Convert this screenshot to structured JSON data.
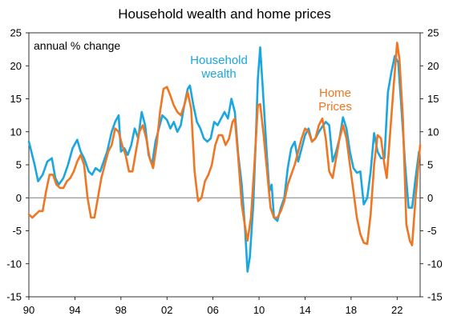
{
  "chart_data": {
    "type": "line",
    "title": "Household wealth and home prices",
    "subtitle": "annual % change",
    "xlabel": "",
    "ylabel": "",
    "x_range": [
      1990,
      2024
    ],
    "ylim": [
      -15,
      25
    ],
    "y_ticks": [
      25,
      20,
      15,
      10,
      5,
      0,
      -5,
      -10,
      -15
    ],
    "x_ticks": [
      {
        "value": 1990,
        "label": "90"
      },
      {
        "value": 1994,
        "label": "94"
      },
      {
        "value": 1998,
        "label": "98"
      },
      {
        "value": 2002,
        "label": "02"
      },
      {
        "value": 2006,
        "label": "06"
      },
      {
        "value": 2010,
        "label": "10"
      },
      {
        "value": 2014,
        "label": "14"
      },
      {
        "value": 2018,
        "label": "18"
      },
      {
        "value": 2022,
        "label": "22"
      }
    ],
    "grid": false,
    "zero_line": true,
    "series": [
      {
        "name": "Household wealth",
        "label_lines": [
          "Household",
          "wealth"
        ],
        "color": "#1aa6e0",
        "points": [
          [
            1990.0,
            8.5
          ],
          [
            1990.5,
            5.0
          ],
          [
            1990.8,
            2.5
          ],
          [
            1991.2,
            3.5
          ],
          [
            1991.6,
            5.5
          ],
          [
            1992.0,
            6.0
          ],
          [
            1992.3,
            3.0
          ],
          [
            1992.6,
            2.0
          ],
          [
            1993.0,
            3.0
          ],
          [
            1993.4,
            5.0
          ],
          [
            1993.8,
            7.5
          ],
          [
            1994.2,
            8.8
          ],
          [
            1994.5,
            7.0
          ],
          [
            1994.8,
            6.0
          ],
          [
            1995.2,
            4.0
          ],
          [
            1995.5,
            3.5
          ],
          [
            1995.8,
            4.5
          ],
          [
            1996.2,
            4.0
          ],
          [
            1996.5,
            5.5
          ],
          [
            1996.8,
            7.0
          ],
          [
            1997.2,
            10.0
          ],
          [
            1997.5,
            11.5
          ],
          [
            1997.8,
            12.5
          ],
          [
            1998.0,
            7.0
          ],
          [
            1998.3,
            7.5
          ],
          [
            1998.6,
            6.5
          ],
          [
            1998.9,
            8.0
          ],
          [
            1999.2,
            10.5
          ],
          [
            1999.5,
            9.0
          ],
          [
            1999.8,
            13.0
          ],
          [
            2000.1,
            11.0
          ],
          [
            2000.4,
            6.5
          ],
          [
            2000.7,
            5.0
          ],
          [
            2001.0,
            8.5
          ],
          [
            2001.3,
            10.5
          ],
          [
            2001.6,
            12.5
          ],
          [
            2002.0,
            11.8
          ],
          [
            2002.3,
            10.5
          ],
          [
            2002.6,
            11.5
          ],
          [
            2002.9,
            10.0
          ],
          [
            2003.2,
            11.0
          ],
          [
            2003.5,
            14.0
          ],
          [
            2003.8,
            16.5
          ],
          [
            2004.0,
            17.0
          ],
          [
            2004.3,
            14.0
          ],
          [
            2004.6,
            11.5
          ],
          [
            2004.9,
            10.5
          ],
          [
            2005.2,
            9.0
          ],
          [
            2005.5,
            8.5
          ],
          [
            2005.8,
            9.0
          ],
          [
            2006.1,
            11.5
          ],
          [
            2006.4,
            11.0
          ],
          [
            2006.7,
            12.0
          ],
          [
            2007.0,
            13.0
          ],
          [
            2007.3,
            12.0
          ],
          [
            2007.6,
            15.0
          ],
          [
            2007.9,
            13.0
          ],
          [
            2008.2,
            6.5
          ],
          [
            2008.5,
            2.0
          ],
          [
            2008.8,
            -5.0
          ],
          [
            2009.0,
            -11.2
          ],
          [
            2009.2,
            -9.0
          ],
          [
            2009.5,
            -1.0
          ],
          [
            2009.7,
            8.0
          ],
          [
            2009.9,
            18.0
          ],
          [
            2010.1,
            22.8
          ],
          [
            2010.4,
            14.5
          ],
          [
            2010.7,
            6.0
          ],
          [
            2010.9,
            1.0
          ],
          [
            2011.1,
            2.0
          ],
          [
            2011.3,
            -3.0
          ],
          [
            2011.6,
            -3.5
          ],
          [
            2011.9,
            -1.5
          ],
          [
            2012.2,
            0.0
          ],
          [
            2012.5,
            4.5
          ],
          [
            2012.8,
            7.5
          ],
          [
            2013.1,
            8.5
          ],
          [
            2013.4,
            5.5
          ],
          [
            2013.7,
            7.5
          ],
          [
            2014.0,
            9.5
          ],
          [
            2014.3,
            10.5
          ],
          [
            2014.6,
            8.5
          ],
          [
            2014.9,
            9.0
          ],
          [
            2015.2,
            10.0
          ],
          [
            2015.5,
            10.8
          ],
          [
            2015.8,
            11.5
          ],
          [
            2016.1,
            11.0
          ],
          [
            2016.4,
            5.5
          ],
          [
            2016.7,
            7.0
          ],
          [
            2017.0,
            9.0
          ],
          [
            2017.3,
            12.2
          ],
          [
            2017.6,
            10.5
          ],
          [
            2017.9,
            7.0
          ],
          [
            2018.2,
            4.5
          ],
          [
            2018.5,
            3.8
          ],
          [
            2018.8,
            4.0
          ],
          [
            2019.1,
            -1.0
          ],
          [
            2019.4,
            0.0
          ],
          [
            2019.7,
            4.0
          ],
          [
            2020.0,
            9.8
          ],
          [
            2020.3,
            7.0
          ],
          [
            2020.6,
            6.0
          ],
          [
            2020.9,
            6.0
          ],
          [
            2021.2,
            16.0
          ],
          [
            2021.5,
            19.0
          ],
          [
            2021.8,
            21.5
          ],
          [
            2022.1,
            20.5
          ],
          [
            2022.4,
            13.0
          ],
          [
            2022.7,
            5.0
          ],
          [
            2023.0,
            -1.5
          ],
          [
            2023.3,
            -1.5
          ],
          [
            2023.6,
            3.0
          ],
          [
            2023.9,
            7.0
          ]
        ]
      },
      {
        "name": "Home Prices",
        "label_lines": [
          "Home",
          "Prices"
        ],
        "color": "#ef7622",
        "points": [
          [
            1990.0,
            -2.5
          ],
          [
            1990.3,
            -3.0
          ],
          [
            1990.6,
            -2.5
          ],
          [
            1990.9,
            -2.0
          ],
          [
            1991.2,
            -2.0
          ],
          [
            1991.5,
            1.0
          ],
          [
            1991.8,
            3.5
          ],
          [
            1992.1,
            3.5
          ],
          [
            1992.4,
            2.0
          ],
          [
            1992.7,
            1.5
          ],
          [
            1993.0,
            1.5
          ],
          [
            1993.3,
            2.5
          ],
          [
            1993.6,
            3.0
          ],
          [
            1993.9,
            4.0
          ],
          [
            1994.2,
            5.5
          ],
          [
            1994.5,
            6.5
          ],
          [
            1994.8,
            5.0
          ],
          [
            1995.1,
            0.0
          ],
          [
            1995.4,
            -3.0
          ],
          [
            1995.7,
            -3.0
          ],
          [
            1996.0,
            0.0
          ],
          [
            1996.3,
            3.0
          ],
          [
            1996.6,
            5.0
          ],
          [
            1996.9,
            7.0
          ],
          [
            1997.2,
            8.0
          ],
          [
            1997.5,
            10.5
          ],
          [
            1997.8,
            10.0
          ],
          [
            1998.1,
            8.0
          ],
          [
            1998.4,
            6.5
          ],
          [
            1998.7,
            4.0
          ],
          [
            1999.0,
            4.0
          ],
          [
            1999.3,
            7.0
          ],
          [
            1999.6,
            10.0
          ],
          [
            1999.9,
            11.0
          ],
          [
            2000.2,
            9.0
          ],
          [
            2000.5,
            6.0
          ],
          [
            2000.8,
            4.5
          ],
          [
            2001.1,
            8.0
          ],
          [
            2001.4,
            13.0
          ],
          [
            2001.7,
            16.5
          ],
          [
            2002.0,
            16.8
          ],
          [
            2002.3,
            15.5
          ],
          [
            2002.6,
            14.0
          ],
          [
            2002.9,
            13.0
          ],
          [
            2003.2,
            12.5
          ],
          [
            2003.5,
            14.0
          ],
          [
            2003.8,
            16.0
          ],
          [
            2004.1,
            13.5
          ],
          [
            2004.4,
            4.0
          ],
          [
            2004.7,
            -0.5
          ],
          [
            2005.0,
            0.0
          ],
          [
            2005.3,
            2.5
          ],
          [
            2005.6,
            3.5
          ],
          [
            2005.9,
            5.0
          ],
          [
            2006.2,
            8.0
          ],
          [
            2006.5,
            9.5
          ],
          [
            2006.8,
            9.5
          ],
          [
            2007.1,
            8.0
          ],
          [
            2007.4,
            9.0
          ],
          [
            2007.7,
            11.5
          ],
          [
            2007.9,
            12.0
          ],
          [
            2008.2,
            6.0
          ],
          [
            2008.5,
            -1.0
          ],
          [
            2008.8,
            -4.5
          ],
          [
            2009.0,
            -6.5
          ],
          [
            2009.3,
            -3.0
          ],
          [
            2009.6,
            5.0
          ],
          [
            2009.9,
            14.0
          ],
          [
            2010.1,
            14.2
          ],
          [
            2010.4,
            9.5
          ],
          [
            2010.7,
            4.0
          ],
          [
            2011.0,
            -1.5
          ],
          [
            2011.3,
            -3.0
          ],
          [
            2011.6,
            -3.0
          ],
          [
            2011.9,
            -2.0
          ],
          [
            2012.2,
            -0.5
          ],
          [
            2012.5,
            2.0
          ],
          [
            2012.8,
            3.5
          ],
          [
            2013.1,
            5.0
          ],
          [
            2013.4,
            7.0
          ],
          [
            2013.7,
            9.0
          ],
          [
            2014.0,
            10.5
          ],
          [
            2014.3,
            10.0
          ],
          [
            2014.6,
            8.5
          ],
          [
            2014.9,
            9.0
          ],
          [
            2015.2,
            11.0
          ],
          [
            2015.5,
            12.0
          ],
          [
            2015.8,
            9.0
          ],
          [
            2016.1,
            4.0
          ],
          [
            2016.4,
            3.0
          ],
          [
            2016.7,
            6.0
          ],
          [
            2017.0,
            9.0
          ],
          [
            2017.3,
            11.0
          ],
          [
            2017.6,
            9.0
          ],
          [
            2017.9,
            5.0
          ],
          [
            2018.2,
            1.0
          ],
          [
            2018.5,
            -3.0
          ],
          [
            2018.8,
            -5.5
          ],
          [
            2019.1,
            -6.8
          ],
          [
            2019.4,
            -7.0
          ],
          [
            2019.7,
            -2.5
          ],
          [
            2020.0,
            5.0
          ],
          [
            2020.3,
            9.5
          ],
          [
            2020.6,
            9.0
          ],
          [
            2020.9,
            5.0
          ],
          [
            2021.1,
            3.0
          ],
          [
            2021.4,
            10.0
          ],
          [
            2021.7,
            17.0
          ],
          [
            2022.0,
            23.5
          ],
          [
            2022.2,
            21.0
          ],
          [
            2022.5,
            12.0
          ],
          [
            2022.8,
            -4.0
          ],
          [
            2023.1,
            -6.5
          ],
          [
            2023.3,
            -7.2
          ],
          [
            2023.6,
            0.0
          ],
          [
            2024.0,
            8.0
          ]
        ]
      }
    ]
  }
}
